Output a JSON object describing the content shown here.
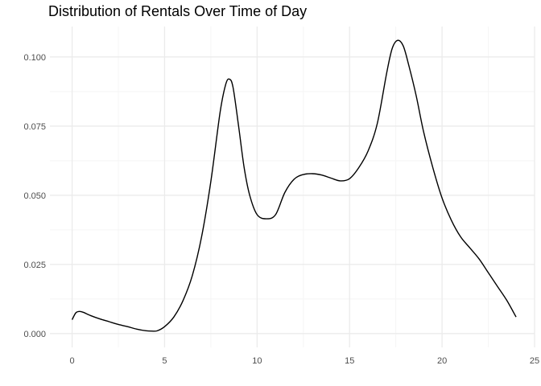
{
  "chart_data": {
    "type": "line",
    "title": "Distribution of Rentals Over Time of Day",
    "xlabel": "",
    "ylabel": "",
    "xlim": [
      -1.2,
      25.0
    ],
    "ylim": [
      -0.005,
      0.111
    ],
    "x_ticks": [
      0,
      5,
      10,
      15,
      20,
      25
    ],
    "y_ticks": [
      0.0,
      0.025,
      0.05,
      0.075,
      0.1
    ],
    "x_tick_labels": [
      "0",
      "5",
      "10",
      "15",
      "20",
      "25"
    ],
    "y_tick_labels": [
      "0.000",
      "0.025",
      "0.050",
      "0.075",
      "0.100"
    ],
    "grid": true,
    "legend": "none",
    "colors": {
      "line": "#000000",
      "grid_major": "#ebebeb",
      "grid_minor": "#f5f5f5",
      "text": "#4d4d4d"
    },
    "series": [
      {
        "x": [
          0,
          0.2,
          0.4,
          0.6,
          1,
          1.5,
          2,
          2.5,
          3,
          3.5,
          4,
          4.3,
          4.6,
          5,
          5.5,
          6,
          6.5,
          7,
          7.5,
          8,
          8.3,
          8.5,
          8.7,
          9,
          9.3,
          9.6,
          10,
          10.5,
          11,
          11.5,
          12,
          12.5,
          13,
          13.5,
          14,
          14.5,
          15,
          15.5,
          16,
          16.5,
          17,
          17.3,
          17.6,
          17.9,
          18.2,
          18.6,
          19,
          19.5,
          20,
          20.5,
          21,
          21.5,
          22,
          22.5,
          23,
          23.5,
          24
        ],
        "y": [
          0.005,
          0.0075,
          0.008,
          0.0077,
          0.0065,
          0.0053,
          0.0043,
          0.0033,
          0.0025,
          0.0016,
          0.001,
          0.0009,
          0.001,
          0.0025,
          0.006,
          0.012,
          0.021,
          0.035,
          0.055,
          0.08,
          0.09,
          0.092,
          0.089,
          0.075,
          0.06,
          0.05,
          0.043,
          0.0415,
          0.043,
          0.051,
          0.0558,
          0.0575,
          0.0578,
          0.0573,
          0.0562,
          0.0552,
          0.056,
          0.06,
          0.066,
          0.076,
          0.094,
          0.103,
          0.106,
          0.104,
          0.097,
          0.086,
          0.073,
          0.06,
          0.049,
          0.041,
          0.035,
          0.031,
          0.027,
          0.022,
          0.017,
          0.012,
          0.006
        ]
      }
    ]
  }
}
